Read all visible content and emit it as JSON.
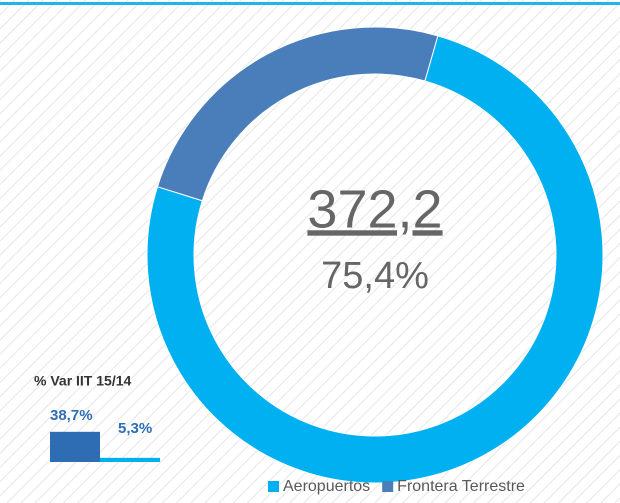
{
  "chart_data": [
    {
      "type": "donut",
      "categories": [
        "Aeropuertos",
        "Frontera Terrestre"
      ],
      "values": [
        75.4,
        24.6
      ],
      "value_labels": [
        "75,4%",
        null
      ],
      "colors": [
        "#00b0f0",
        "#4a7ebb"
      ],
      "center_text": "372,2",
      "legend": "bottom-right"
    },
    {
      "type": "bar",
      "title": "% Var IIT 15/14",
      "values": [
        38.7,
        5.3
      ],
      "value_labels": [
        "38,7%",
        "5,3%"
      ],
      "colors": [
        "#2e6db4",
        "#00b0f0"
      ]
    }
  ]
}
